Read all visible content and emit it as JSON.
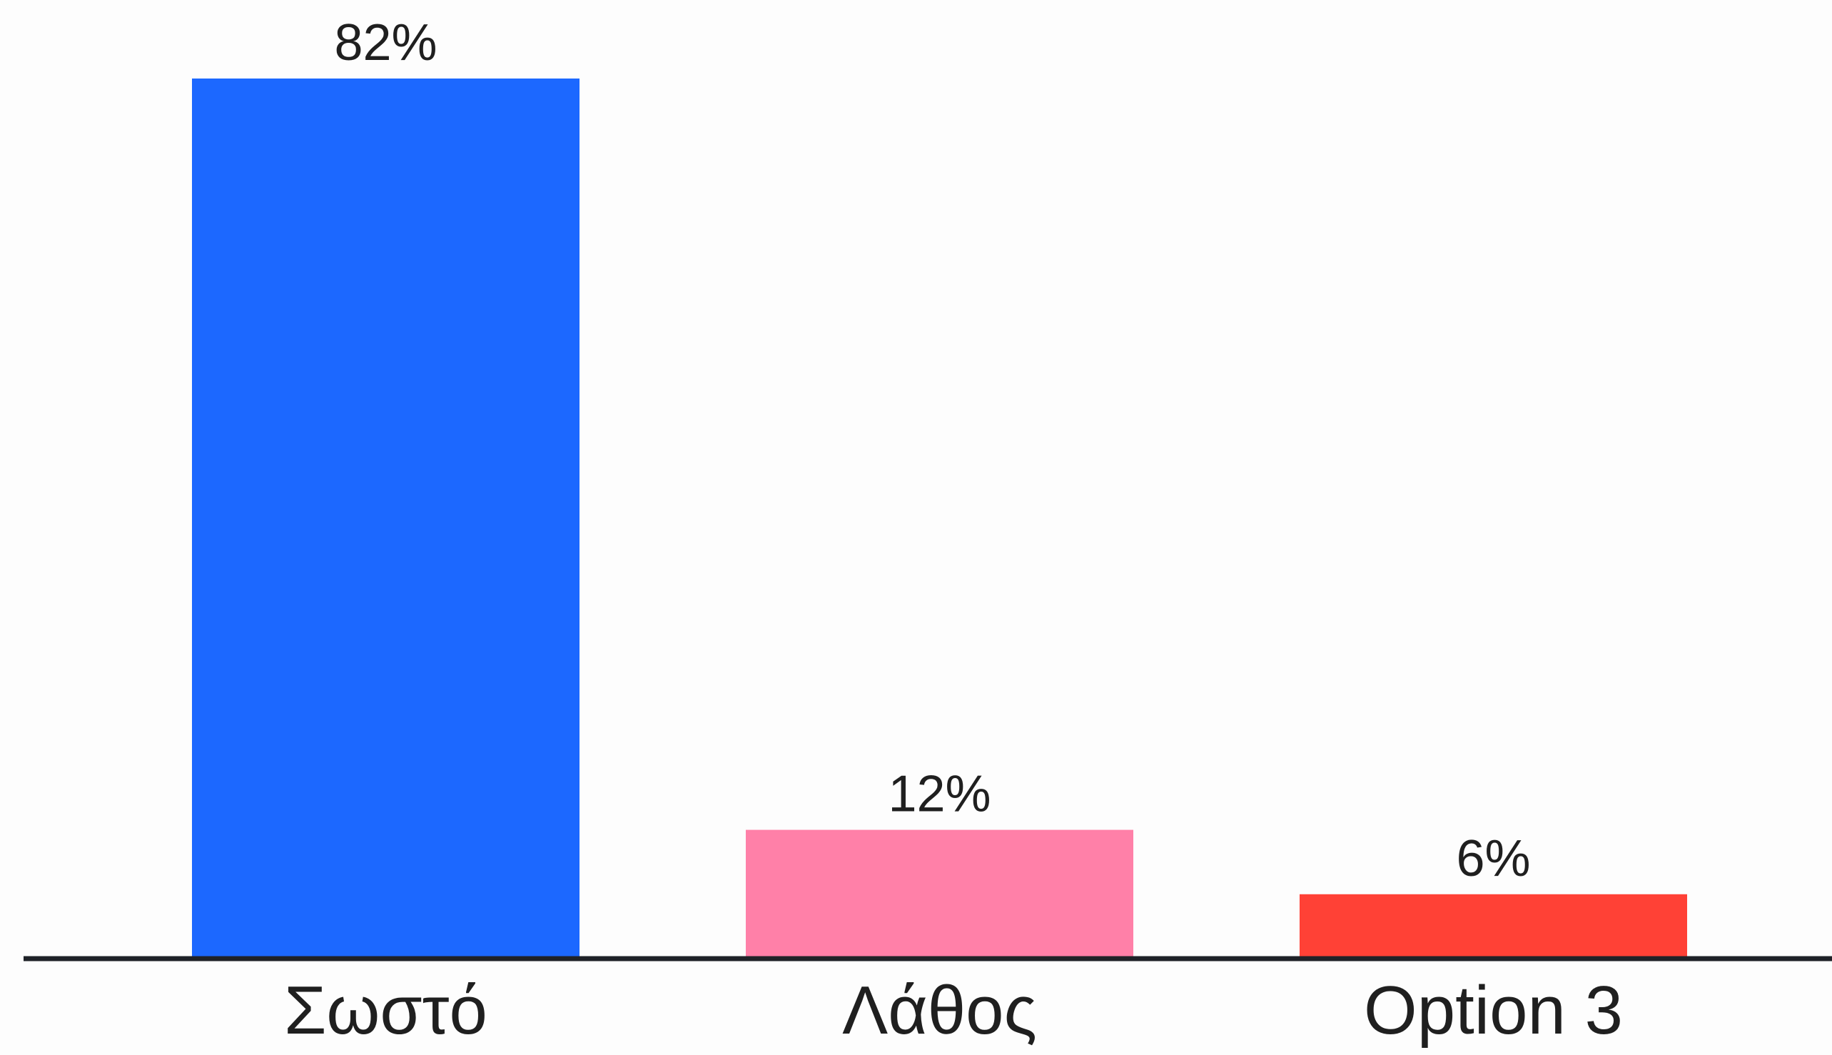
{
  "chart_data": {
    "type": "bar",
    "categories": [
      "Σωστό",
      "Λάθος",
      "Option 3"
    ],
    "values": [
      82,
      12,
      6
    ],
    "value_labels": [
      "82%",
      "12%",
      "6%"
    ],
    "colors": [
      "#1c68ff",
      "#ff80a8",
      "#ff4136"
    ],
    "axis_color": "#1f2228",
    "ylim": [
      0,
      82
    ],
    "grid": false,
    "legend": "none"
  }
}
